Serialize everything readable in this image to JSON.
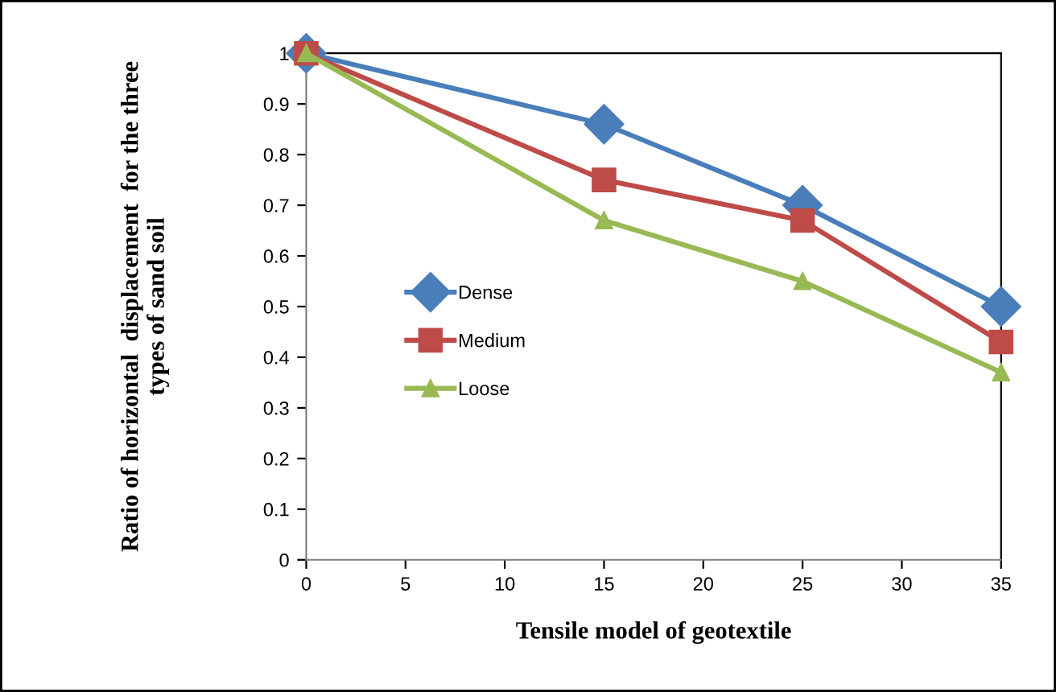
{
  "chart_data": {
    "type": "line",
    "xlabel": "Tensile model of geotextile",
    "ylabel": "Ratio of horizontal  displacement  for the three types of sand soil",
    "x": [
      0,
      15,
      25,
      35
    ],
    "series": [
      {
        "name": "Dense",
        "color": "#4a7ebb",
        "marker": "diamond",
        "values": [
          1,
          0.86,
          0.7,
          0.5
        ]
      },
      {
        "name": "Medium",
        "color": "#be4b48",
        "marker": "square",
        "values": [
          1,
          0.75,
          0.67,
          0.43
        ]
      },
      {
        "name": "Loose",
        "color": "#98b954",
        "marker": "triangle",
        "values": [
          1,
          0.67,
          0.55,
          0.37
        ]
      }
    ],
    "xlim": [
      0,
      35
    ],
    "xticks": [
      0,
      5,
      10,
      15,
      20,
      25,
      30,
      35
    ],
    "ylim": [
      0,
      1
    ],
    "yticks": [
      0,
      0.1,
      0.2,
      0.3,
      0.4,
      0.5,
      0.6,
      0.7,
      0.8,
      0.9,
      1
    ],
    "grid": false,
    "legend": "left",
    "line_style": "solid"
  }
}
